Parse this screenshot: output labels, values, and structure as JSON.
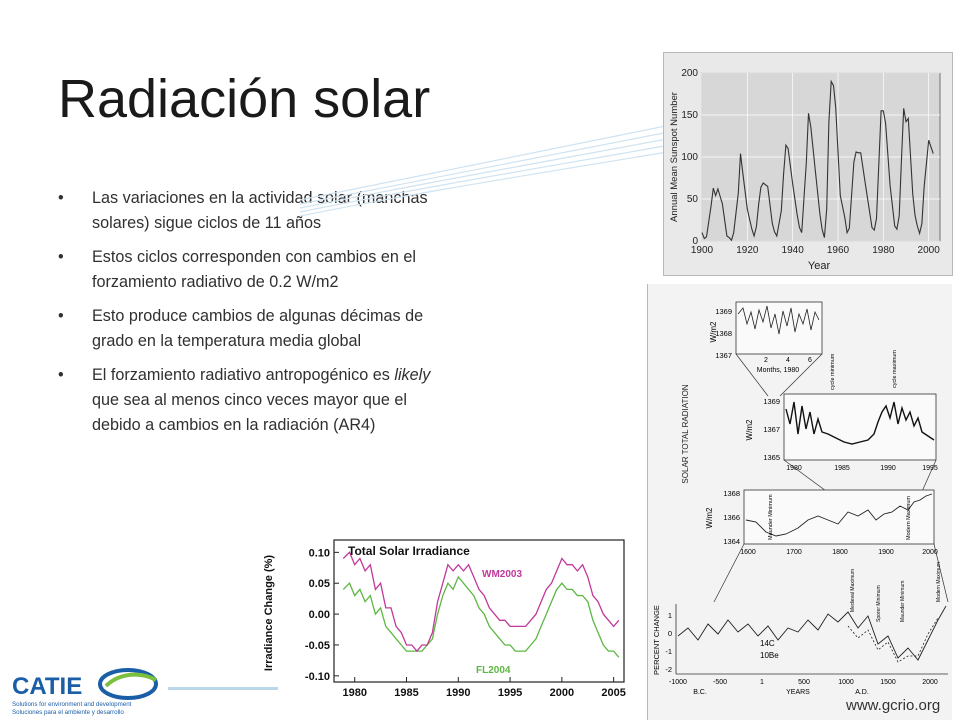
{
  "slide": {
    "title": "Radiación solar",
    "bullets": [
      {
        "text": "Las variaciones en la actividad solar (manchas solares) sigue ciclos de 11 años"
      },
      {
        "text": "Estos ciclos corresponden  con cambios en el forzamiento radiativo de 0.2 W/m2"
      },
      {
        "text": "Esto produce cambios de algunas décimas de grado en la temperatura media global"
      },
      {
        "text_before": "El forzamiento radiativo antropogénico es ",
        "text_em": "likely",
        "text_after": " que sea al menos cinco veces mayor que el debido a cambios en la radiación (AR4)"
      }
    ],
    "bullet_glyph": "•",
    "url": "www.gcrio.org",
    "colors": {
      "title": "#1a1a1a",
      "text": "#303030",
      "wm2003": "#c0399a",
      "fl2004": "#5db843",
      "catie_blue": "#1b5ea8",
      "catie_green": "#7bbf3f"
    }
  },
  "logo": {
    "name": "CATIE",
    "tagline_1": "Solutions for environment and development",
    "tagline_2": "Soluciones para el ambiente y desarrollo"
  },
  "chart_data": [
    {
      "id": "sunspots",
      "type": "line",
      "ylabel": "Annual Mean Sunspot Number",
      "xlabel": "Year",
      "x_ticks": [
        "1900",
        "1920",
        "1940",
        "1960",
        "1980",
        "2000"
      ],
      "y_ticks": [
        "0",
        "50",
        "100",
        "150",
        "200"
      ],
      "xlim": [
        1900,
        2005
      ],
      "ylim": [
        0,
        200
      ],
      "grid": true,
      "series": [
        {
          "x": [
            1900,
            1901,
            1902,
            1904,
            1905,
            1906,
            1907,
            1909,
            1911,
            1912,
            1913,
            1914,
            1916,
            1917,
            1918,
            1920,
            1922,
            1923,
            1924,
            1925,
            1926,
            1927,
            1929,
            1931,
            1932,
            1933,
            1935,
            1936,
            1937,
            1938,
            1940,
            1942,
            1943,
            1944,
            1946,
            1947,
            1948,
            1950,
            1952,
            1953,
            1954,
            1955,
            1956,
            1957,
            1958,
            1959,
            1961,
            1963,
            1964,
            1965,
            1967,
            1968,
            1969,
            1970,
            1972,
            1974,
            1975,
            1976,
            1977,
            1979,
            1980,
            1981,
            1983,
            1985,
            1986,
            1987,
            1988,
            1989,
            1990,
            1991,
            1993,
            1994,
            1995,
            1996,
            1997,
            1998,
            2000,
            2002
          ],
          "y": [
            10,
            3,
            5,
            42,
            63,
            54,
            62,
            44,
            6,
            4,
            1,
            10,
            57,
            104,
            81,
            38,
            14,
            6,
            17,
            44,
            64,
            69,
            65,
            21,
            11,
            6,
            36,
            80,
            114,
            110,
            68,
            31,
            16,
            10,
            93,
            152,
            136,
            84,
            32,
            14,
            4,
            38,
            142,
            190,
            185,
            159,
            54,
            28,
            10,
            15,
            94,
            106,
            105,
            105,
            69,
            34,
            16,
            13,
            27,
            155,
            155,
            140,
            66,
            18,
            14,
            30,
            98,
            158,
            142,
            146,
            55,
            30,
            18,
            9,
            21,
            64,
            120,
            104
          ]
        }
      ]
    },
    {
      "id": "solar_total_radiation",
      "type": "line",
      "ylabel": "SOLAR TOTAL RADIATION",
      "panels": [
        {
          "ylabel": "W/m2",
          "y_ticks": [
            "1369",
            "1368",
            "1367"
          ],
          "x_ticks": [
            "2",
            "4",
            "6"
          ],
          "xlabel": "Months, 1980"
        },
        {
          "ylabel": "W/m2",
          "y_ticks": [
            "1369",
            "1367",
            "1365"
          ],
          "x_ticks": [
            "1980",
            "1985",
            "1990",
            "1995"
          ],
          "annotations": [
            "cycle minimum",
            "cycle maximum"
          ]
        },
        {
          "ylabel": "W/m2",
          "y_ticks": [
            "1368",
            "1366",
            "1364"
          ],
          "x_ticks": [
            "1600",
            "1700",
            "1800",
            "1900",
            "2000"
          ],
          "annotations": [
            "Maunder Minimum",
            "Modern Maximum"
          ]
        },
        {
          "ylabel": "PERCENT CHANGE",
          "y_ticks": [
            "1",
            "0",
            "-1",
            "-2"
          ],
          "x_ticks": [
            "-1000",
            "-500",
            "1",
            "500",
            "1000",
            "1500",
            "2000"
          ],
          "x_era_labels": [
            "B.C.",
            "YEARS",
            "A.D."
          ],
          "series_labels": [
            "14C",
            "10Be"
          ],
          "annotations": [
            "Medieval Maximum",
            "Sporer Minimum",
            "Maunder Minimum",
            "Modern Maximum"
          ]
        }
      ]
    },
    {
      "id": "tsi",
      "type": "line",
      "title": "Total Solar Irradiance",
      "ylabel": "Irradiance Change (%)",
      "x_ticks": [
        "1980",
        "1985",
        "1990",
        "1995",
        "2000",
        "2005"
      ],
      "y_ticks": [
        "0.10",
        "0.05",
        "0.00",
        "-0.05",
        "-0.10"
      ],
      "xlim": [
        1978,
        2006
      ],
      "ylim": [
        -0.11,
        0.12
      ],
      "series": [
        {
          "name": "WM2003",
          "color": "#c0399a",
          "x": [
            1978.9,
            1979.5,
            1980.0,
            1980.5,
            1981.0,
            1981.5,
            1982.0,
            1982.5,
            1983.0,
            1983.5,
            1984.0,
            1984.5,
            1985.0,
            1985.5,
            1986.0,
            1986.5,
            1987.0,
            1987.5,
            1988.0,
            1988.5,
            1989.0,
            1989.5,
            1990.0,
            1990.5,
            1991.0,
            1991.5,
            1992.0,
            1992.5,
            1993.0,
            1993.5,
            1994.0,
            1994.5,
            1995.0,
            1995.5,
            1996.0,
            1996.5,
            1997.0,
            1997.5,
            1998.0,
            1998.5,
            1999.0,
            1999.5,
            2000.0,
            2000.5,
            2001.0,
            2001.5,
            2002.0,
            2002.5,
            2003.0,
            2003.5,
            2004.0,
            2004.5,
            2005.0,
            2005.5
          ],
          "y": [
            0.09,
            0.1,
            0.08,
            0.09,
            0.07,
            0.08,
            0.04,
            0.05,
            0.01,
            0.01,
            -0.02,
            -0.03,
            -0.05,
            -0.05,
            -0.06,
            -0.05,
            -0.05,
            -0.03,
            0.02,
            0.05,
            0.08,
            0.07,
            0.08,
            0.07,
            0.08,
            0.06,
            0.04,
            0.03,
            0.01,
            0.0,
            -0.01,
            -0.01,
            -0.02,
            -0.02,
            -0.02,
            -0.02,
            -0.01,
            0.0,
            0.02,
            0.04,
            0.05,
            0.07,
            0.09,
            0.08,
            0.08,
            0.07,
            0.08,
            0.06,
            0.03,
            0.02,
            0.0,
            -0.01,
            -0.02,
            -0.01
          ]
        },
        {
          "name": "FL2004",
          "color": "#5db843",
          "x": [
            1978.9,
            1979.5,
            1980.0,
            1980.5,
            1981.0,
            1981.5,
            1982.0,
            1982.5,
            1983.0,
            1983.5,
            1984.0,
            1984.5,
            1985.0,
            1985.5,
            1986.0,
            1986.5,
            1987.0,
            1987.5,
            1988.0,
            1988.5,
            1989.0,
            1989.5,
            1990.0,
            1990.5,
            1991.0,
            1991.5,
            1992.0,
            1992.5,
            1993.0,
            1993.5,
            1994.0,
            1994.5,
            1995.0,
            1995.5,
            1996.0,
            1996.5,
            1997.0,
            1997.5,
            1998.0,
            1998.5,
            1999.0,
            1999.5,
            2000.0,
            2000.5,
            2001.0,
            2001.5,
            2002.0,
            2002.5,
            2003.0,
            2003.5,
            2004.0,
            2004.5,
            2005.0,
            2005.5
          ],
          "y": [
            0.04,
            0.05,
            0.03,
            0.04,
            0.02,
            0.03,
            0.0,
            0.01,
            -0.02,
            -0.03,
            -0.04,
            -0.05,
            -0.06,
            -0.06,
            -0.06,
            -0.06,
            -0.05,
            -0.04,
            0.0,
            0.03,
            0.05,
            0.04,
            0.06,
            0.05,
            0.04,
            0.03,
            0.01,
            0.0,
            -0.02,
            -0.03,
            -0.04,
            -0.05,
            -0.05,
            -0.06,
            -0.06,
            -0.06,
            -0.05,
            -0.04,
            -0.02,
            0.0,
            0.02,
            0.04,
            0.05,
            0.04,
            0.04,
            0.03,
            0.03,
            0.02,
            -0.01,
            -0.03,
            -0.05,
            -0.06,
            -0.06,
            -0.07
          ]
        }
      ]
    }
  ]
}
